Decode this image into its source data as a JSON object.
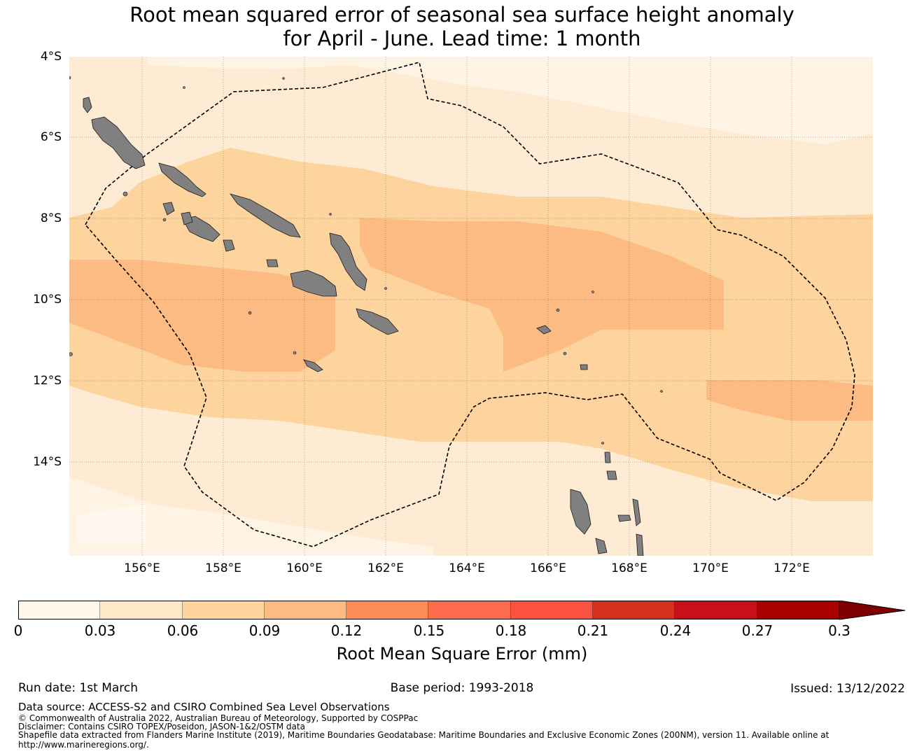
{
  "title": {
    "line1": "Root mean squared error of seasonal sea surface height anomaly",
    "line2": "for April - June. Lead time: 1 month"
  },
  "map": {
    "lat_labels": [
      "4°S",
      "6°S",
      "8°S",
      "10°S",
      "12°S",
      "14°S"
    ],
    "lon_labels": [
      "156°E",
      "158°E",
      "160°E",
      "162°E",
      "164°E",
      "166°E",
      "168°E",
      "170°E",
      "172°E"
    ],
    "lat_range": [
      -16.3,
      -4.0
    ],
    "lon_range": [
      154.2,
      174.0
    ],
    "land_color": "#808080",
    "ocean_default_color": "#fdebd3",
    "eez_boundary_style": "dashed",
    "field_bands": [
      {
        "name": "low",
        "color": "#fdebd3",
        "value": "0.03-0.06"
      },
      {
        "name": "very-low",
        "color": "#fff4e4",
        "value": "0-0.03"
      },
      {
        "name": "mid",
        "color": "#fdd49e",
        "value": "0.06-0.09"
      },
      {
        "name": "high",
        "color": "#fdbb84",
        "value": "0.09-0.12"
      }
    ]
  },
  "colorbar": {
    "colors": [
      "#fff7ec",
      "#fee8c8",
      "#fdd49e",
      "#fdbb84",
      "#fc8d59",
      "#fc6c4c",
      "#fb5140",
      "#d7301f",
      "#c8101a",
      "#aa0000",
      "#7f0000"
    ],
    "ticks": [
      "0",
      "0.03",
      "0.06",
      "0.09",
      "0.12",
      "0.15",
      "0.18",
      "0.21",
      "0.24",
      "0.27",
      "0.3"
    ],
    "label": "Root Mean Square Error (mm)",
    "extend": "max"
  },
  "footer": {
    "run_date": "Run date: 1st March",
    "base_period": "Base period: 1993-2018",
    "issued": "Issued: 13/12/2022",
    "data_source": "Data source: ACCESS-S2 and CSIRO Combined Sea Level Observations",
    "copyright": "© Commonwealth of Australia 2022, Australian Bureau of Meteorology, Supported by COSPPac",
    "disclaimer": "Disclaimer: Contains CSIRO TOPEX/Poseidon, JASON-1&2/OSTM data",
    "shapefile": "Shapefile data extracted from Flanders Marine Institute (2019), Maritime Boundaries Geodatabase: Maritime Boundaries and Exclusive Economic Zones (200NM), version 11. Available online at",
    "url": "http://www.marineregions.org/."
  }
}
